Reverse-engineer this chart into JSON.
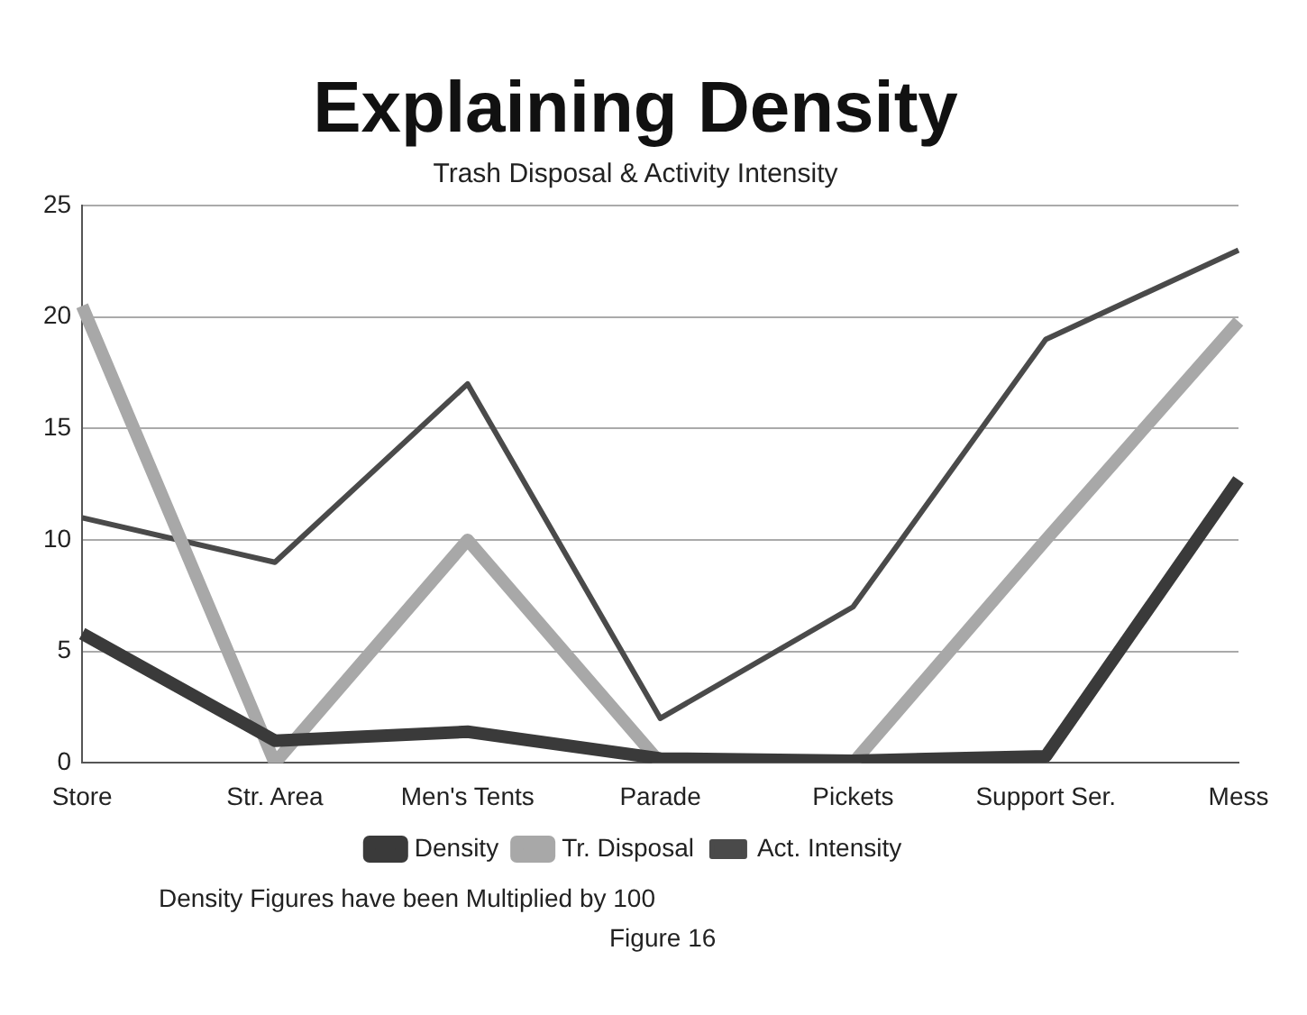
{
  "chart_data": {
    "type": "line",
    "title": "Explaining Density",
    "subtitle": "Trash Disposal & Activity Intensity",
    "categories": [
      "Store",
      "Str. Area",
      "Men's Tents",
      "Parade",
      "Pickets",
      "Support Ser.",
      "Mess"
    ],
    "series": [
      {
        "name": "Density",
        "color": "#3a3a3a",
        "values": [
          5.8,
          1,
          1.4,
          0.2,
          0.1,
          0.3,
          12.7
        ]
      },
      {
        "name": "Tr. Disposal",
        "color": "#a8a8a8",
        "values": [
          20.5,
          0,
          10,
          0,
          0,
          10,
          19.8
        ]
      },
      {
        "name": "Act. Intensity",
        "color": "#4a4a4a",
        "values": [
          11,
          9,
          17,
          2,
          7,
          19,
          23
        ]
      }
    ],
    "ylim": [
      0,
      25
    ],
    "yticks": [
      0,
      5,
      10,
      15,
      20,
      25
    ],
    "grid": "y",
    "legend": "bottom",
    "marker": "none",
    "line_style": "solid",
    "annotations": [
      "Density Figures have been Multiplied by 100",
      "Figure 16"
    ]
  }
}
